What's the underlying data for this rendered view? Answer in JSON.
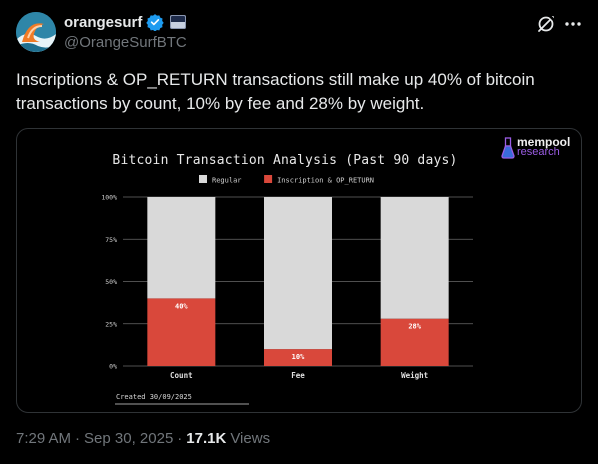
{
  "author": {
    "display_name": "orangesurf",
    "handle": "@OrangeSurfBTC",
    "verified_color": "#1d9bf0"
  },
  "tweet": {
    "text": "Inscriptions & OP_RETURN transactions still make up 40% of bitcoin\ntransactions by count, 10% by fee and 28% by weight."
  },
  "meta": {
    "time": "7:29 AM",
    "separator_1": "·",
    "date": "Sep 30, 2025",
    "separator_2": "·",
    "views": "17.1K",
    "views_label": "Views"
  },
  "brand": {
    "name": "mempool",
    "sub": "research"
  },
  "chart_data": {
    "type": "bar",
    "stacked": true,
    "title": "Bitcoin Transaction Analysis (Past 90 days)",
    "categories": [
      "Count",
      "Fee",
      "Weight"
    ],
    "series": [
      {
        "name": "Regular",
        "values": [
          60,
          90,
          72
        ],
        "color": "#d9d9d9"
      },
      {
        "name": "Inscription & OP_RETURN",
        "values": [
          40,
          10,
          28
        ],
        "color": "#d9483b"
      }
    ],
    "data_labels": [
      "40%",
      "10%",
      "28%"
    ],
    "ylim": [
      0,
      100
    ],
    "y_ticks": [
      "0%",
      "25%",
      "50%",
      "75%",
      "100%"
    ],
    "legend_position": "top",
    "footnote": "Created 30/09/2025",
    "background": "#000000"
  }
}
